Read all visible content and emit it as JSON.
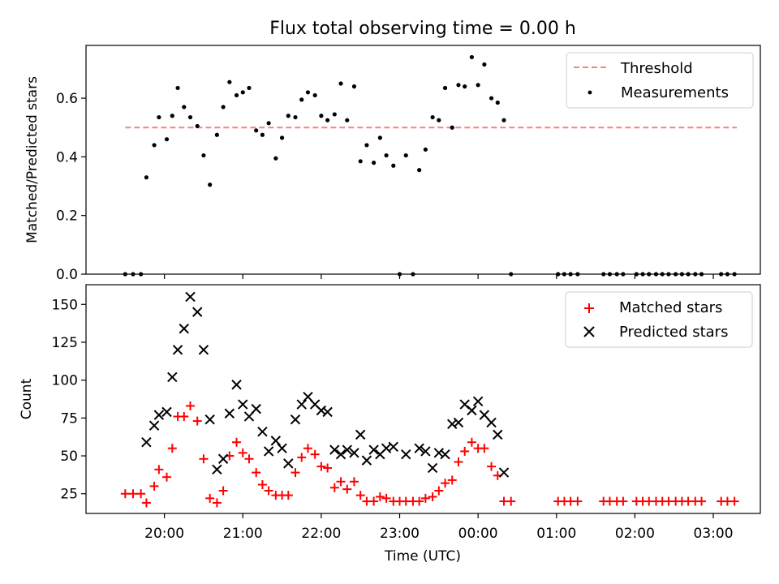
{
  "chart_data": [
    {
      "type": "scatter",
      "title": "Flux total observing time = 0.00 h",
      "xlabel": "",
      "ylabel": "Matched/Predicted stars",
      "ylim": [
        0,
        0.78
      ],
      "xlim_hours": [
        19.0,
        27.6
      ],
      "y_ticks": [
        0.0,
        0.2,
        0.4,
        0.6
      ],
      "legend": {
        "position": "top-right",
        "entries": [
          "Threshold",
          "Measurements"
        ]
      },
      "threshold": {
        "name": "Threshold",
        "value": 0.5,
        "x_range_hours": [
          19.5,
          27.3
        ],
        "color": "#ff7f7f",
        "style": "dashed"
      },
      "series": [
        {
          "name": "Measurements",
          "color": "#000000",
          "marker": "dot",
          "x_hours": [
            19.5,
            19.6,
            19.7,
            19.77,
            19.87,
            19.93,
            20.03,
            20.1,
            20.17,
            20.25,
            20.33,
            20.42,
            20.5,
            20.58,
            20.67,
            20.75,
            20.83,
            20.92,
            21.0,
            21.08,
            21.17,
            21.25,
            21.33,
            21.42,
            21.5,
            21.58,
            21.67,
            21.75,
            21.83,
            21.92,
            22.0,
            22.08,
            22.17,
            22.25,
            22.33,
            22.42,
            22.5,
            22.58,
            22.67,
            22.75,
            22.83,
            22.92,
            23.0,
            23.08,
            23.17,
            23.25,
            23.33,
            23.42,
            23.5,
            23.58,
            23.67,
            23.75,
            23.83,
            23.92,
            24.0,
            24.08,
            24.17,
            24.25,
            24.33,
            24.42,
            25.02,
            25.1,
            25.18,
            25.27,
            25.6,
            25.68,
            25.77,
            25.85,
            26.02,
            26.1,
            26.18,
            26.27,
            26.35,
            26.43,
            26.52,
            26.6,
            26.68,
            26.77,
            26.85,
            27.1,
            27.18,
            27.27
          ],
          "y": [
            0.0,
            0.0,
            0.0,
            0.33,
            0.44,
            0.535,
            0.46,
            0.54,
            0.635,
            0.57,
            0.535,
            0.505,
            0.405,
            0.305,
            0.475,
            0.57,
            0.655,
            0.61,
            0.62,
            0.635,
            0.49,
            0.475,
            0.515,
            0.395,
            0.465,
            0.54,
            0.535,
            0.595,
            0.62,
            0.61,
            0.54,
            0.525,
            0.545,
            0.65,
            0.525,
            0.64,
            0.385,
            0.44,
            0.38,
            0.465,
            0.405,
            0.37,
            0.0,
            0.405,
            0.0,
            0.355,
            0.425,
            0.535,
            0.525,
            0.635,
            0.5,
            0.645,
            0.64,
            0.74,
            0.645,
            0.715,
            0.6,
            0.585,
            0.525,
            0.0,
            0.0,
            0.0,
            0.0,
            0.0,
            0.0,
            0.0,
            0.0,
            0.0,
            0.0,
            0.0,
            0.0,
            0.0,
            0.0,
            0.0,
            0.0,
            0.0,
            0.0,
            0.0,
            0.0,
            0.0,
            0.0,
            0.0
          ]
        }
      ]
    },
    {
      "type": "scatter",
      "title": "",
      "xlabel": "Time (UTC)",
      "ylabel": "Count",
      "ylim": [
        12,
        163
      ],
      "xlim_hours": [
        19.0,
        27.6
      ],
      "y_ticks": [
        25,
        50,
        75,
        100,
        125,
        150
      ],
      "x_ticks": [
        {
          "hours": 20,
          "label": "20:00"
        },
        {
          "hours": 21,
          "label": "21:00"
        },
        {
          "hours": 22,
          "label": "22:00"
        },
        {
          "hours": 23,
          "label": "23:00"
        },
        {
          "hours": 24,
          "label": "00:00"
        },
        {
          "hours": 25,
          "label": "01:00"
        },
        {
          "hours": 26,
          "label": "02:00"
        },
        {
          "hours": 27,
          "label": "03:00"
        }
      ],
      "legend": {
        "position": "top-right",
        "entries": [
          "Matched stars",
          "Predicted stars"
        ]
      },
      "series": [
        {
          "name": "Matched stars",
          "color": "#ff0000",
          "marker": "plus",
          "x_hours": [
            19.5,
            19.6,
            19.7,
            19.77,
            19.87,
            19.93,
            20.03,
            20.1,
            20.17,
            20.25,
            20.33,
            20.42,
            20.5,
            20.58,
            20.67,
            20.75,
            20.83,
            20.92,
            21.0,
            21.08,
            21.17,
            21.25,
            21.33,
            21.42,
            21.5,
            21.58,
            21.67,
            21.75,
            21.83,
            21.92,
            22.0,
            22.08,
            22.17,
            22.25,
            22.33,
            22.42,
            22.5,
            22.58,
            22.67,
            22.75,
            22.83,
            22.92,
            23.0,
            23.08,
            23.17,
            23.25,
            23.33,
            23.42,
            23.5,
            23.58,
            23.67,
            23.75,
            23.83,
            23.92,
            24.0,
            24.08,
            24.17,
            24.25,
            24.33,
            24.42,
            25.02,
            25.1,
            25.18,
            25.27,
            25.6,
            25.68,
            25.77,
            25.85,
            26.02,
            26.1,
            26.18,
            26.27,
            26.35,
            26.43,
            26.52,
            26.6,
            26.68,
            26.77,
            26.85,
            27.1,
            27.18,
            27.27
          ],
          "y": [
            25,
            25,
            25,
            19,
            30,
            41,
            36,
            55,
            76,
            76,
            83,
            73,
            48,
            22,
            19,
            27,
            50,
            59,
            52,
            48,
            39,
            31,
            27,
            24,
            24,
            24,
            39,
            49,
            55,
            51,
            43,
            42,
            29,
            33,
            28,
            33,
            24,
            20,
            20,
            23,
            22,
            20,
            20,
            20,
            20,
            20,
            22,
            23,
            27,
            32,
            34,
            46,
            53,
            59,
            55,
            55,
            43,
            37,
            20,
            20,
            20,
            20,
            20,
            20,
            20,
            20,
            20,
            20,
            20,
            20,
            20,
            20,
            20,
            20,
            20,
            20,
            20,
            20,
            20,
            20,
            20,
            20
          ]
        },
        {
          "name": "Predicted stars",
          "color": "#000000",
          "marker": "x",
          "x_hours": [
            19.77,
            19.87,
            19.93,
            20.03,
            20.1,
            20.17,
            20.25,
            20.33,
            20.42,
            20.5,
            20.58,
            20.67,
            20.75,
            20.83,
            20.92,
            21.0,
            21.08,
            21.17,
            21.25,
            21.33,
            21.42,
            21.5,
            21.58,
            21.67,
            21.75,
            21.83,
            21.92,
            22.0,
            22.08,
            22.17,
            22.25,
            22.33,
            22.42,
            22.5,
            22.58,
            22.67,
            22.75,
            22.83,
            22.92,
            23.08,
            23.25,
            23.33,
            23.42,
            23.5,
            23.58,
            23.67,
            23.75,
            23.83,
            23.92,
            24.0,
            24.08,
            24.17,
            24.25,
            24.33
          ],
          "y": [
            59,
            70,
            77,
            79,
            102,
            120,
            134,
            155,
            145,
            120,
            74,
            41,
            48,
            78,
            97,
            84,
            76,
            81,
            66,
            53,
            60,
            55,
            45,
            74,
            84,
            89,
            84,
            80,
            79,
            54,
            51,
            54,
            52,
            64,
            47,
            54,
            51,
            55,
            56,
            51,
            55,
            53,
            42,
            52,
            51,
            71,
            72,
            84,
            80,
            86,
            77,
            72,
            64,
            39
          ]
        }
      ]
    }
  ]
}
